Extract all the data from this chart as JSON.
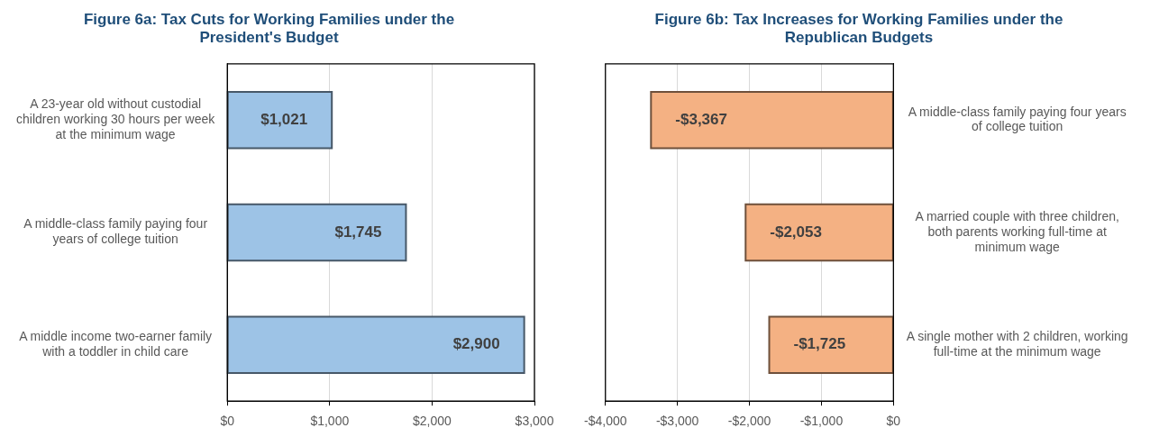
{
  "chart_data": [
    {
      "type": "bar",
      "orientation": "horizontal",
      "title": "Figure 6a: Tax Cuts for Working Families under the President's Budget",
      "categories": [
        "A 23-year old without custodial children working 30 hours per week at the minimum wage",
        "A middle-class family paying four years of college tuition",
        "A middle income two-earner family with a toddler in child care"
      ],
      "values": [
        1021,
        1745,
        2900
      ],
      "value_labels": [
        "$1,021",
        "$1,745",
        "$2,900"
      ],
      "color": "#9dc3e6",
      "xlim": [
        0,
        3000
      ],
      "xticks": [
        {
          "value": 0,
          "label": "$0"
        },
        {
          "value": 1000,
          "label": "$1,000"
        },
        {
          "value": 2000,
          "label": "$2,000"
        },
        {
          "value": 3000,
          "label": "$3,000"
        }
      ],
      "grid": "x"
    },
    {
      "type": "bar",
      "orientation": "horizontal",
      "title": "Figure 6b: Tax Increases for Working Families under the Republican Budgets",
      "categories": [
        "A middle-class family paying four years of college tuition",
        "A married couple with three children, both parents working full-time at minimum wage",
        "A single mother with 2 children, working full-time at the minimum wage"
      ],
      "values": [
        -3367,
        -2053,
        -1725
      ],
      "value_labels": [
        "-$3,367",
        "-$2,053",
        "-$1,725"
      ],
      "color": "#f4b183",
      "xlim": [
        -4000,
        0
      ],
      "xticks": [
        {
          "value": -4000,
          "label": "-$4,000"
        },
        {
          "value": -3000,
          "label": "-$3,000"
        },
        {
          "value": -2000,
          "label": "-$2,000"
        },
        {
          "value": -1000,
          "label": "-$1,000"
        },
        {
          "value": 0,
          "label": "$0"
        }
      ],
      "grid": "x"
    }
  ]
}
